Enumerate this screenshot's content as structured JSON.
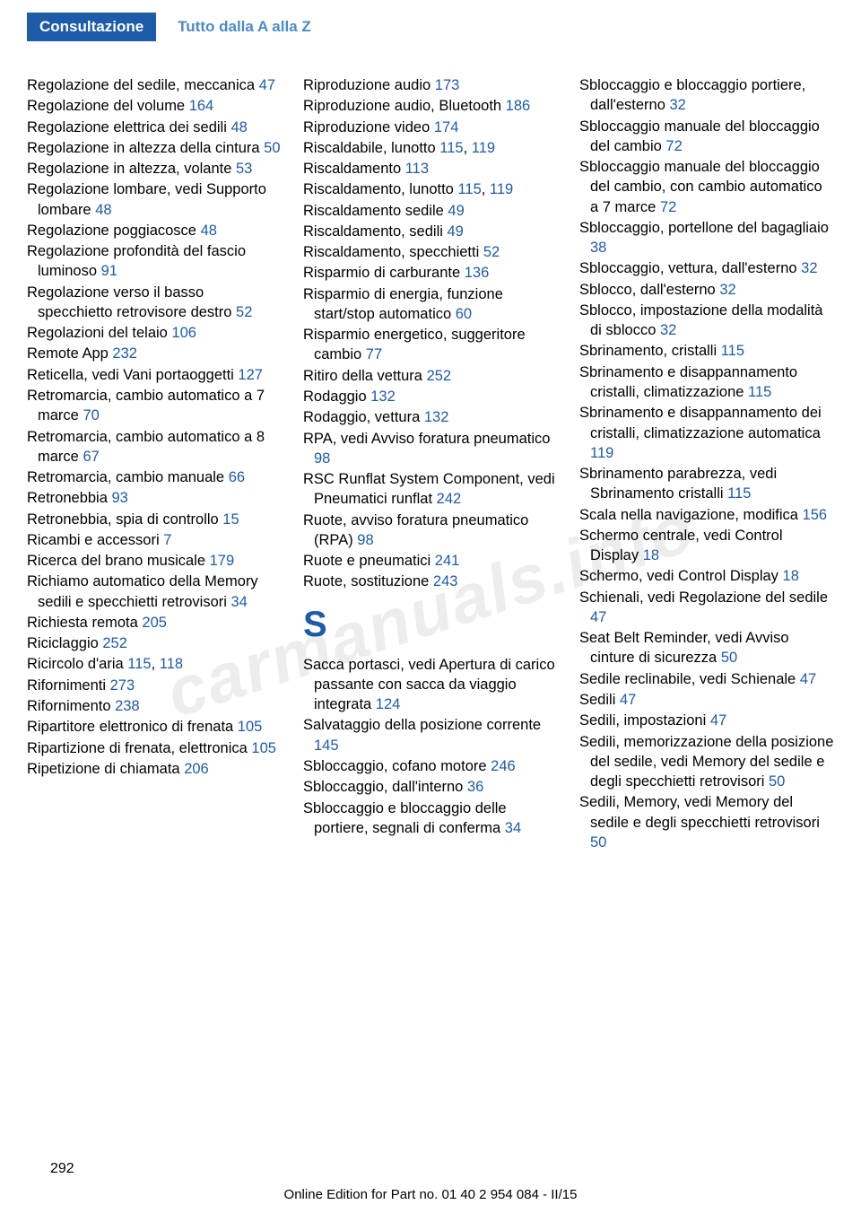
{
  "header": {
    "tab": "Consultazione",
    "title": "Tutto dalla A alla Z"
  },
  "columns": [
    {
      "entries": [
        {
          "text": "Regolazione del sedile, meccanica",
          "ref": "47"
        },
        {
          "text": "Regolazione del volume",
          "ref": "164"
        },
        {
          "text": "Regolazione elettrica dei sedili",
          "ref": "48"
        },
        {
          "text": "Regolazione in altezza della cintura",
          "ref": "50"
        },
        {
          "text": "Regolazione in altezza, volante",
          "ref": "53"
        },
        {
          "text": "Regolazione lombare, vedi Supporto lombare",
          "ref": "48"
        },
        {
          "text": "Regolazione poggiacosce",
          "ref": "48"
        },
        {
          "text": "Regolazione profondità del fascio luminoso",
          "ref": "91"
        },
        {
          "text": "Regolazione verso il basso specchietto retrovisore destro",
          "ref": "52"
        },
        {
          "text": "Regolazioni del telaio",
          "ref": "106"
        },
        {
          "text": "Remote App",
          "ref": "232"
        },
        {
          "text": "Reticella, vedi Vani portaoggetti",
          "ref": "127"
        },
        {
          "text": "Retromarcia, cambio automatico a 7 marce",
          "ref": "70"
        },
        {
          "text": "Retromarcia, cambio automatico a 8 marce",
          "ref": "67"
        },
        {
          "text": "Retromarcia, cambio manuale",
          "ref": "66"
        },
        {
          "text": "Retronebbia",
          "ref": "93"
        },
        {
          "text": "Retronebbia, spia di controllo",
          "ref": "15"
        },
        {
          "text": "Ricambi e accessori",
          "ref": "7"
        },
        {
          "text": "Ricerca del brano musicale",
          "ref": "179"
        },
        {
          "text": "Richiamo automatico della Memory sedili e specchietti retrovisori",
          "ref": "34"
        },
        {
          "text": "Richiesta remota",
          "ref": "205"
        },
        {
          "text": "Riciclaggio",
          "ref": "252"
        },
        {
          "text": "Ricircolo d'aria",
          "ref": "115",
          "ref2": "118"
        },
        {
          "text": "Rifornimenti",
          "ref": "273"
        },
        {
          "text": "Rifornimento",
          "ref": "238"
        },
        {
          "text": "Ripartitore elettronico di frenata",
          "ref": "105"
        },
        {
          "text": "Ripartizione di frenata, elettronica",
          "ref": "105"
        },
        {
          "text": "Ripetizione di chiamata",
          "ref": "206"
        }
      ]
    },
    {
      "entries": [
        {
          "text": "Riproduzione audio",
          "ref": "173"
        },
        {
          "text": "Riproduzione audio, Bluetooth",
          "ref": "186"
        },
        {
          "text": "Riproduzione video",
          "ref": "174"
        },
        {
          "text": "Riscaldabile, lunotto",
          "ref": "115",
          "ref2": "119"
        },
        {
          "text": "Riscaldamento",
          "ref": "113"
        },
        {
          "text": "Riscaldamento, lunotto",
          "ref": "115",
          "ref2": "119"
        },
        {
          "text": "Riscaldamento sedile",
          "ref": "49"
        },
        {
          "text": "Riscaldamento, sedili",
          "ref": "49"
        },
        {
          "text": "Riscaldamento, specchietti",
          "ref": "52"
        },
        {
          "text": "Risparmio di carburante",
          "ref": "136"
        },
        {
          "text": "Risparmio di energia, funzione start/stop automatico",
          "ref": "60"
        },
        {
          "text": "Risparmio energetico, suggeritore cambio",
          "ref": "77"
        },
        {
          "text": "Ritiro della vettura",
          "ref": "252"
        },
        {
          "text": "Rodaggio",
          "ref": "132"
        },
        {
          "text": "Rodaggio, vettura",
          "ref": "132"
        },
        {
          "text": "RPA, vedi Avviso foratura pneumatico",
          "ref": "98"
        },
        {
          "text": "RSC Runflat System Component, vedi Pneumatici runflat",
          "ref": "242"
        },
        {
          "text": "Ruote, avviso foratura pneumatico (RPA)",
          "ref": "98"
        },
        {
          "text": "Ruote e pneumatici",
          "ref": "241"
        },
        {
          "text": "Ruote, sostituzione",
          "ref": "243"
        }
      ],
      "section_letter": "S",
      "entries2": [
        {
          "text": "Sacca portasci, vedi Apertura di carico passante con sacca da viaggio integrata",
          "ref": "124"
        },
        {
          "text": "Salvataggio della posizione corrente",
          "ref": "145"
        },
        {
          "text": "Sbloccaggio, cofano motore",
          "ref": "246"
        },
        {
          "text": "Sbloccaggio, dall'interno",
          "ref": "36"
        },
        {
          "text": "Sbloccaggio e bloccaggio delle portiere, segnali di conferma",
          "ref": "34"
        }
      ]
    },
    {
      "entries": [
        {
          "text": "Sbloccaggio e bloccaggio portiere, dall'esterno",
          "ref": "32"
        },
        {
          "text": "Sbloccaggio manuale del bloccaggio del cambio",
          "ref": "72"
        },
        {
          "text": "Sbloccaggio manuale del bloccaggio del cambio, con cambio automatico a 7 marce",
          "ref": "72"
        },
        {
          "text": "Sbloccaggio, portellone del bagagliaio",
          "ref": "38"
        },
        {
          "text": "Sbloccaggio, vettura, dall'esterno",
          "ref": "32"
        },
        {
          "text": "Sblocco, dall'esterno",
          "ref": "32"
        },
        {
          "text": "Sblocco, impostazione della modalità di sblocco",
          "ref": "32"
        },
        {
          "text": "Sbrinamento, cristalli",
          "ref": "115"
        },
        {
          "text": "Sbrinamento e disappannamento cristalli, climatizzazione",
          "ref": "115"
        },
        {
          "text": "Sbrinamento e disappannamento dei cristalli, climatizzazione automatica",
          "ref": "119"
        },
        {
          "text": "Sbrinamento parabrezza, vedi Sbrinamento cristalli",
          "ref": "115"
        },
        {
          "text": "Scala nella navigazione, modifica",
          "ref": "156"
        },
        {
          "text": "Schermo centrale, vedi Control Display",
          "ref": "18"
        },
        {
          "text": "Schermo, vedi Control Display",
          "ref": "18"
        },
        {
          "text": "Schienali, vedi Regolazione del sedile",
          "ref": "47"
        },
        {
          "text": "Seat Belt Reminder, vedi Avviso cinture di sicurezza",
          "ref": "50"
        },
        {
          "text": "Sedile reclinabile, vedi Schienale",
          "ref": "47"
        },
        {
          "text": "Sedili",
          "ref": "47"
        },
        {
          "text": "Sedili, impostazioni",
          "ref": "47"
        },
        {
          "text": "Sedili, memorizzazione della posizione del sedile, vedi Memory del sedile e degli specchietti retrovisori",
          "ref": "50"
        },
        {
          "text": "Sedili, Memory, vedi Memory del sedile e degli specchietti retrovisori",
          "ref": "50"
        }
      ]
    }
  ],
  "page_number": "292",
  "footer": "Online Edition for Part no. 01 40 2 954 084 - II/15",
  "watermark": "carmanuals.info"
}
